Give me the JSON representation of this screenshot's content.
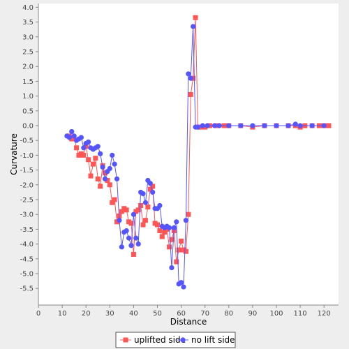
{
  "chart_data": {
    "type": "line",
    "title": "",
    "xlabel": "Distance",
    "ylabel": "Curvature",
    "xlim": [
      0,
      125
    ],
    "ylim": [
      -5.8,
      4.0
    ],
    "x_ticks": [
      0,
      10,
      20,
      30,
      40,
      50,
      60,
      70,
      80,
      90,
      100,
      110,
      120
    ],
    "y_ticks": [
      4.0,
      3.5,
      3.0,
      2.5,
      2.0,
      1.5,
      1.0,
      0.5,
      0.0,
      -0.5,
      -1.0,
      -1.5,
      -2.0,
      -2.5,
      -3.0,
      -3.5,
      -4.0,
      -4.5,
      -5.0,
      -5.5
    ],
    "grid": false,
    "legend_position": "bottom",
    "series": [
      {
        "name": "uplifted side",
        "color": "#ff5555",
        "marker": "square",
        "points": [
          [
            13,
            -0.35
          ],
          [
            14,
            -0.45
          ],
          [
            15,
            -0.4
          ],
          [
            16,
            -0.75
          ],
          [
            17,
            -1.0
          ],
          [
            18,
            -0.95
          ],
          [
            19,
            -1.0
          ],
          [
            20,
            -0.7
          ],
          [
            21,
            -1.15
          ],
          [
            22,
            -1.7
          ],
          [
            23,
            -1.3
          ],
          [
            24,
            -1.1
          ],
          [
            25,
            -1.8
          ],
          [
            26,
            -2.05
          ],
          [
            27,
            -1.35
          ],
          [
            28,
            -1.6
          ],
          [
            29,
            -1.85
          ],
          [
            30,
            -2.0
          ],
          [
            31,
            -2.6
          ],
          [
            32,
            -2.5
          ],
          [
            33,
            -3.25
          ],
          [
            34,
            -3.05
          ],
          [
            35,
            -2.9
          ],
          [
            36,
            -2.8
          ],
          [
            37,
            -2.85
          ],
          [
            38,
            -3.25
          ],
          [
            39,
            -3.3
          ],
          [
            40,
            -4.35
          ],
          [
            41,
            -2.9
          ],
          [
            42,
            -2.85
          ],
          [
            43,
            -2.7
          ],
          [
            44,
            -3.35
          ],
          [
            45,
            -3.2
          ],
          [
            46,
            -2.75
          ],
          [
            47,
            -2.15
          ],
          [
            48,
            -2.05
          ],
          [
            49,
            -3.3
          ],
          [
            50,
            -3.35
          ],
          [
            51,
            -3.55
          ],
          [
            52,
            -3.75
          ],
          [
            53,
            -3.6
          ],
          [
            54,
            -3.5
          ],
          [
            55,
            -4.1
          ],
          [
            56,
            -3.85
          ],
          [
            57,
            -3.55
          ],
          [
            58,
            -4.6
          ],
          [
            59,
            -4.2
          ],
          [
            60,
            -3.9
          ],
          [
            61,
            -4.2
          ],
          [
            62,
            -4.25
          ],
          [
            63,
            -3.0
          ],
          [
            64,
            1.05
          ],
          [
            65,
            1.6
          ],
          [
            66,
            3.65
          ],
          [
            67,
            -0.05
          ],
          [
            68,
            -0.05
          ],
          [
            70,
            -0.05
          ],
          [
            72,
            0.0
          ],
          [
            75,
            0.0
          ],
          [
            78,
            0.0
          ],
          [
            80,
            0.0
          ],
          [
            85,
            0.0
          ],
          [
            90,
            -0.05
          ],
          [
            95,
            0.0
          ],
          [
            100,
            0.0
          ],
          [
            105,
            0.0
          ],
          [
            108,
            0.0
          ],
          [
            110,
            -0.05
          ],
          [
            112,
            0.0
          ],
          [
            115,
            0.0
          ],
          [
            118,
            0.0
          ],
          [
            120,
            0.0
          ],
          [
            122,
            0.0
          ]
        ]
      },
      {
        "name": "no lift side",
        "color": "#5555ff",
        "marker": "circle",
        "points": [
          [
            12,
            -0.35
          ],
          [
            13,
            -0.4
          ],
          [
            14,
            -0.2
          ],
          [
            15,
            -0.35
          ],
          [
            16,
            -0.5
          ],
          [
            17,
            -0.45
          ],
          [
            18,
            -0.4
          ],
          [
            19,
            -0.75
          ],
          [
            20,
            -0.6
          ],
          [
            21,
            -0.55
          ],
          [
            22,
            -0.75
          ],
          [
            23,
            -0.8
          ],
          [
            24,
            -0.75
          ],
          [
            25,
            -0.7
          ],
          [
            26,
            -0.95
          ],
          [
            27,
            -1.4
          ],
          [
            28,
            -1.8
          ],
          [
            29,
            -1.55
          ],
          [
            30,
            -1.45
          ],
          [
            31,
            -1.0
          ],
          [
            32,
            -1.3
          ],
          [
            33,
            -1.8
          ],
          [
            34,
            -3.2
          ],
          [
            35,
            -4.1
          ],
          [
            36,
            -3.6
          ],
          [
            37,
            -3.55
          ],
          [
            38,
            -3.8
          ],
          [
            39,
            -4.05
          ],
          [
            40,
            -3.0
          ],
          [
            41,
            -3.8
          ],
          [
            42,
            -4.0
          ],
          [
            43,
            -2.25
          ],
          [
            44,
            -2.3
          ],
          [
            45,
            -2.6
          ],
          [
            46,
            -1.85
          ],
          [
            47,
            -1.95
          ],
          [
            48,
            -2.25
          ],
          [
            49,
            -2.8
          ],
          [
            50,
            -2.8
          ],
          [
            51,
            -2.7
          ],
          [
            52,
            -3.4
          ],
          [
            53,
            -3.45
          ],
          [
            54,
            -3.4
          ],
          [
            55,
            -3.45
          ],
          [
            56,
            -4.8
          ],
          [
            57,
            -3.45
          ],
          [
            58,
            -3.25
          ],
          [
            59,
            -5.35
          ],
          [
            60,
            -5.3
          ],
          [
            61,
            -5.45
          ],
          [
            62,
            -3.2
          ],
          [
            63,
            1.75
          ],
          [
            64,
            1.6
          ],
          [
            65,
            3.35
          ],
          [
            66,
            -0.05
          ],
          [
            67,
            -0.05
          ],
          [
            69,
            0.0
          ],
          [
            71,
            0.0
          ],
          [
            74,
            0.0
          ],
          [
            76,
            0.0
          ],
          [
            80,
            0.0
          ],
          [
            85,
            0.0
          ],
          [
            90,
            0.0
          ],
          [
            95,
            0.0
          ],
          [
            100,
            0.0
          ],
          [
            105,
            0.0
          ],
          [
            108,
            0.05
          ],
          [
            110,
            0.0
          ],
          [
            115,
            0.0
          ],
          [
            120,
            0.0
          ]
        ]
      }
    ]
  }
}
